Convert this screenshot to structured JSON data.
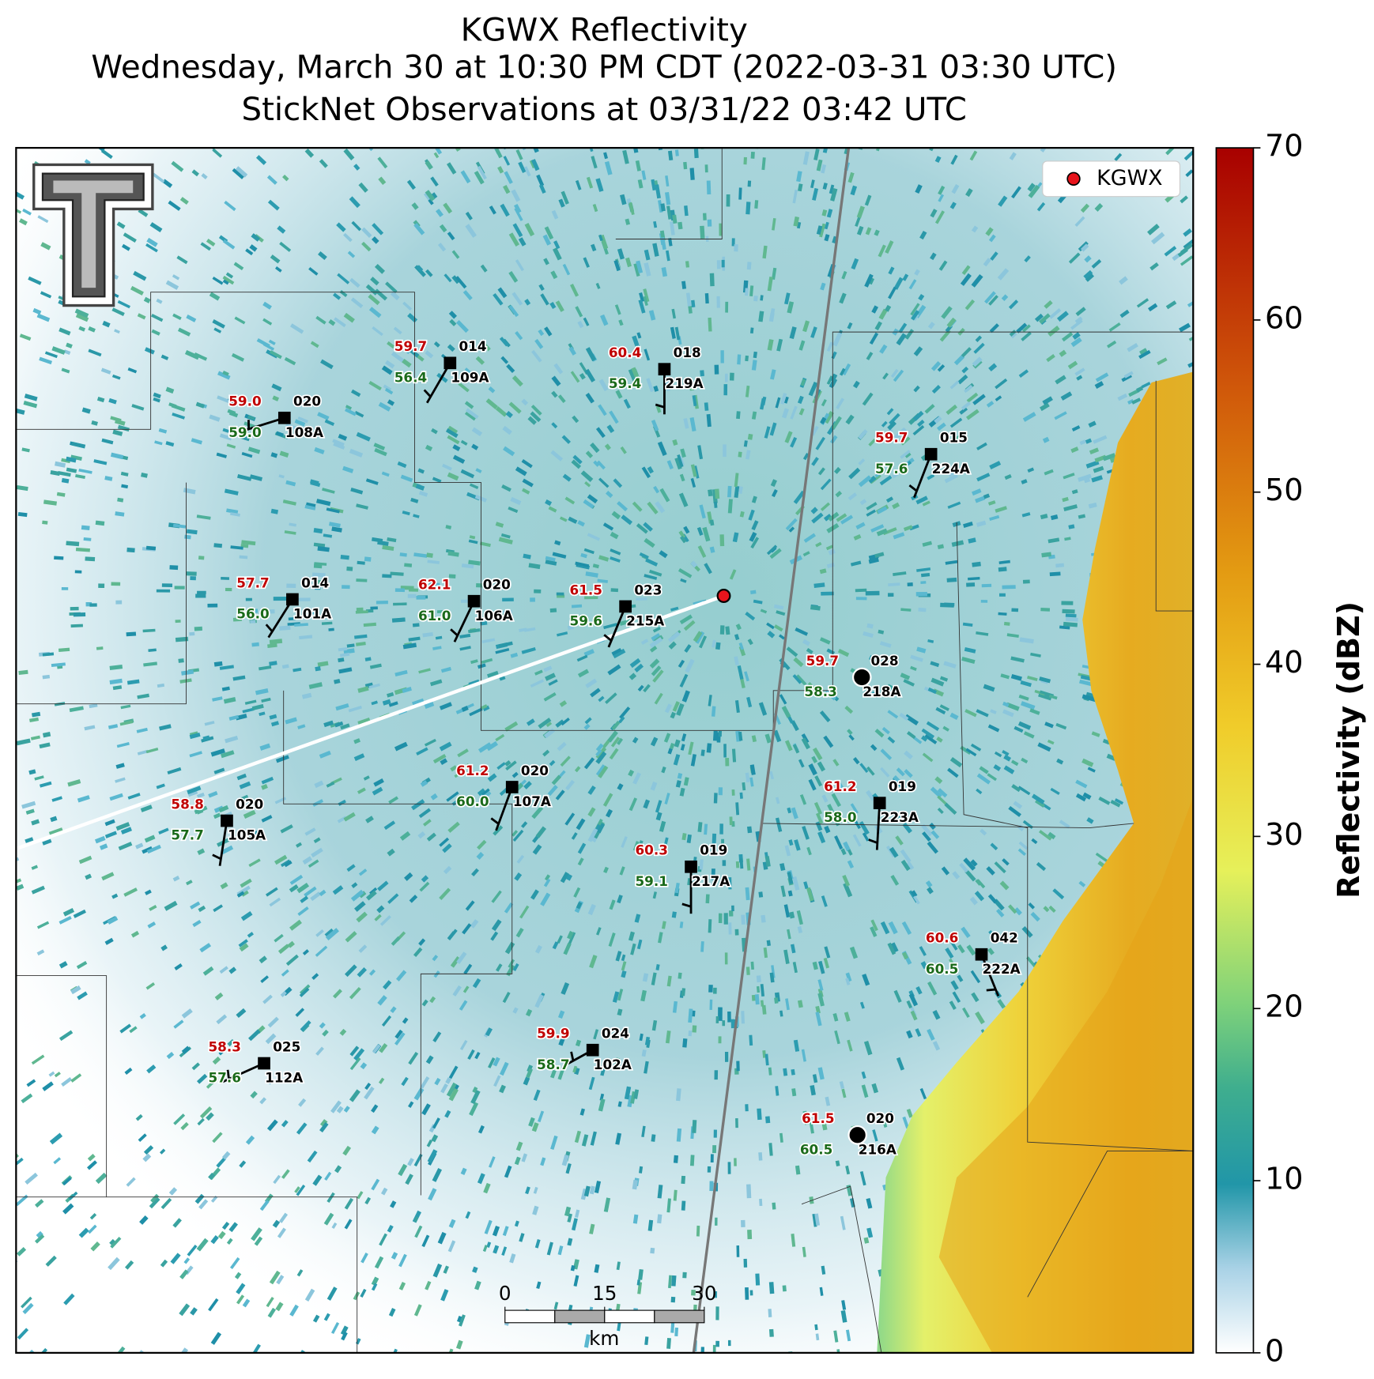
{
  "title": {
    "lines": [
      "KGWX Reflectivity",
      "Wednesday, March 30 at 10:30 PM CDT (2022-03-31 03:30 UTC)",
      "StickNet Observations at 03/31/22 03:42 UTC"
    ]
  },
  "legend": {
    "label": "KGWX"
  },
  "colorbar": {
    "label": "Reflectivity (dBZ)",
    "lim": [
      0,
      70
    ],
    "ticks": [
      0,
      10,
      20,
      30,
      40,
      50,
      60,
      70
    ]
  },
  "scale_bar": {
    "lim": [
      0,
      30
    ],
    "ticks": [
      0,
      15,
      30
    ],
    "unit": "km"
  },
  "stations": [
    {
      "id": "109A",
      "temperature": "59.7",
      "dewpoint": "56.4",
      "value": "014"
    },
    {
      "id": "219A",
      "temperature": "60.4",
      "dewpoint": "59.4",
      "value": "018"
    },
    {
      "id": "108A",
      "temperature": "59.0",
      "dewpoint": "59.0",
      "value": "020"
    },
    {
      "id": "224A",
      "temperature": "59.7",
      "dewpoint": "57.6",
      "value": "015"
    },
    {
      "id": "101A",
      "temperature": "57.7",
      "dewpoint": "56.0",
      "value": "014"
    },
    {
      "id": "106A",
      "temperature": "62.1",
      "dewpoint": "61.0",
      "value": "020"
    },
    {
      "id": "215A",
      "temperature": "61.5",
      "dewpoint": "59.6",
      "value": "023"
    },
    {
      "id": "218A",
      "temperature": "59.7",
      "dewpoint": "58.3",
      "value": "028"
    },
    {
      "id": "107A",
      "temperature": "61.2",
      "dewpoint": "60.0",
      "value": "020"
    },
    {
      "id": "223A",
      "temperature": "61.2",
      "dewpoint": "58.0",
      "value": "019"
    },
    {
      "id": "105A",
      "temperature": "58.8",
      "dewpoint": "57.7",
      "value": "020"
    },
    {
      "id": "217A",
      "temperature": "60.3",
      "dewpoint": "59.1",
      "value": "019"
    },
    {
      "id": "222A",
      "temperature": "60.6",
      "dewpoint": "60.5",
      "value": "042"
    },
    {
      "id": "102A",
      "temperature": "59.9",
      "dewpoint": "58.7",
      "value": "024"
    },
    {
      "id": "112A",
      "temperature": "58.3",
      "dewpoint": "57.6",
      "value": "025"
    },
    {
      "id": "216A",
      "temperature": "61.5",
      "dewpoint": "60.5",
      "value": "020"
    }
  ]
}
